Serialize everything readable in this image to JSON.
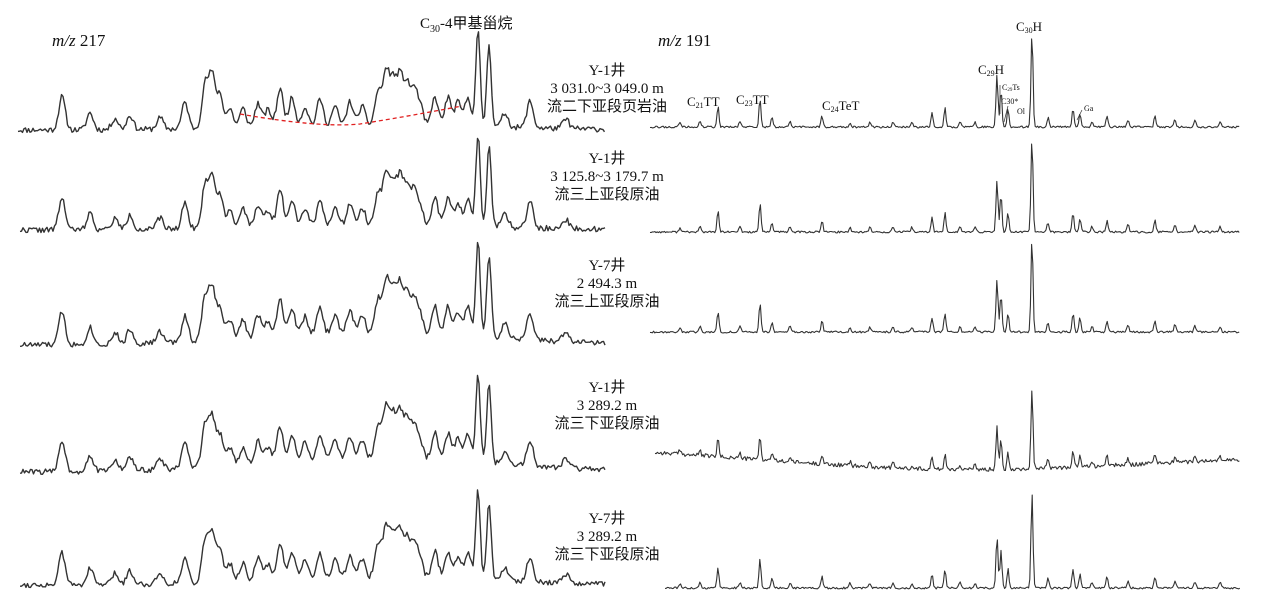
{
  "chart_data": {
    "type": "line",
    "panels": [
      {
        "label_prefix": "m/z",
        "label_mass": "217",
        "annotation": "C30-4甲基甾烷"
      },
      {
        "label_prefix": "m/z",
        "label_mass": "191"
      }
    ],
    "samples": [
      {
        "well": "Y-1井",
        "depth": "3 031.0~3 049.0 m",
        "unit": "流二下亚段页岩油"
      },
      {
        "well": "Y-1井",
        "depth": "3 125.8~3 179.7 m",
        "unit": "流三上亚段原油"
      },
      {
        "well": "Y-7井",
        "depth": "2 494.3 m",
        "unit": "流三上亚段原油"
      },
      {
        "well": "Y-1井",
        "depth": "3 289.2 m",
        "unit": "流三下亚段原油"
      },
      {
        "well": "Y-7井",
        "depth": "3 289.2 m",
        "unit": "流三下亚段原油"
      }
    ],
    "peak_labels_191": [
      {
        "base": "C",
        "sub": "21",
        "rest": "TT"
      },
      {
        "base": "C",
        "sub": "23",
        "rest": "TT"
      },
      {
        "base": "C",
        "sub": "24",
        "rest": "TeT"
      },
      {
        "base": "C",
        "sub": "29",
        "rest": "H"
      },
      {
        "base": "C",
        "sub": "30",
        "rest": "H"
      },
      {
        "base": "C",
        "sub": "29",
        "rest": "Ts"
      },
      {
        "base": "C30*",
        "sub": "",
        "rest": ""
      },
      {
        "base": "Ol",
        "sub": "",
        "rest": ""
      },
      {
        "base": "Ga",
        "sub": "",
        "rest": ""
      }
    ],
    "colors": {
      "trace": "#333333",
      "marker": "#e02020"
    }
  }
}
